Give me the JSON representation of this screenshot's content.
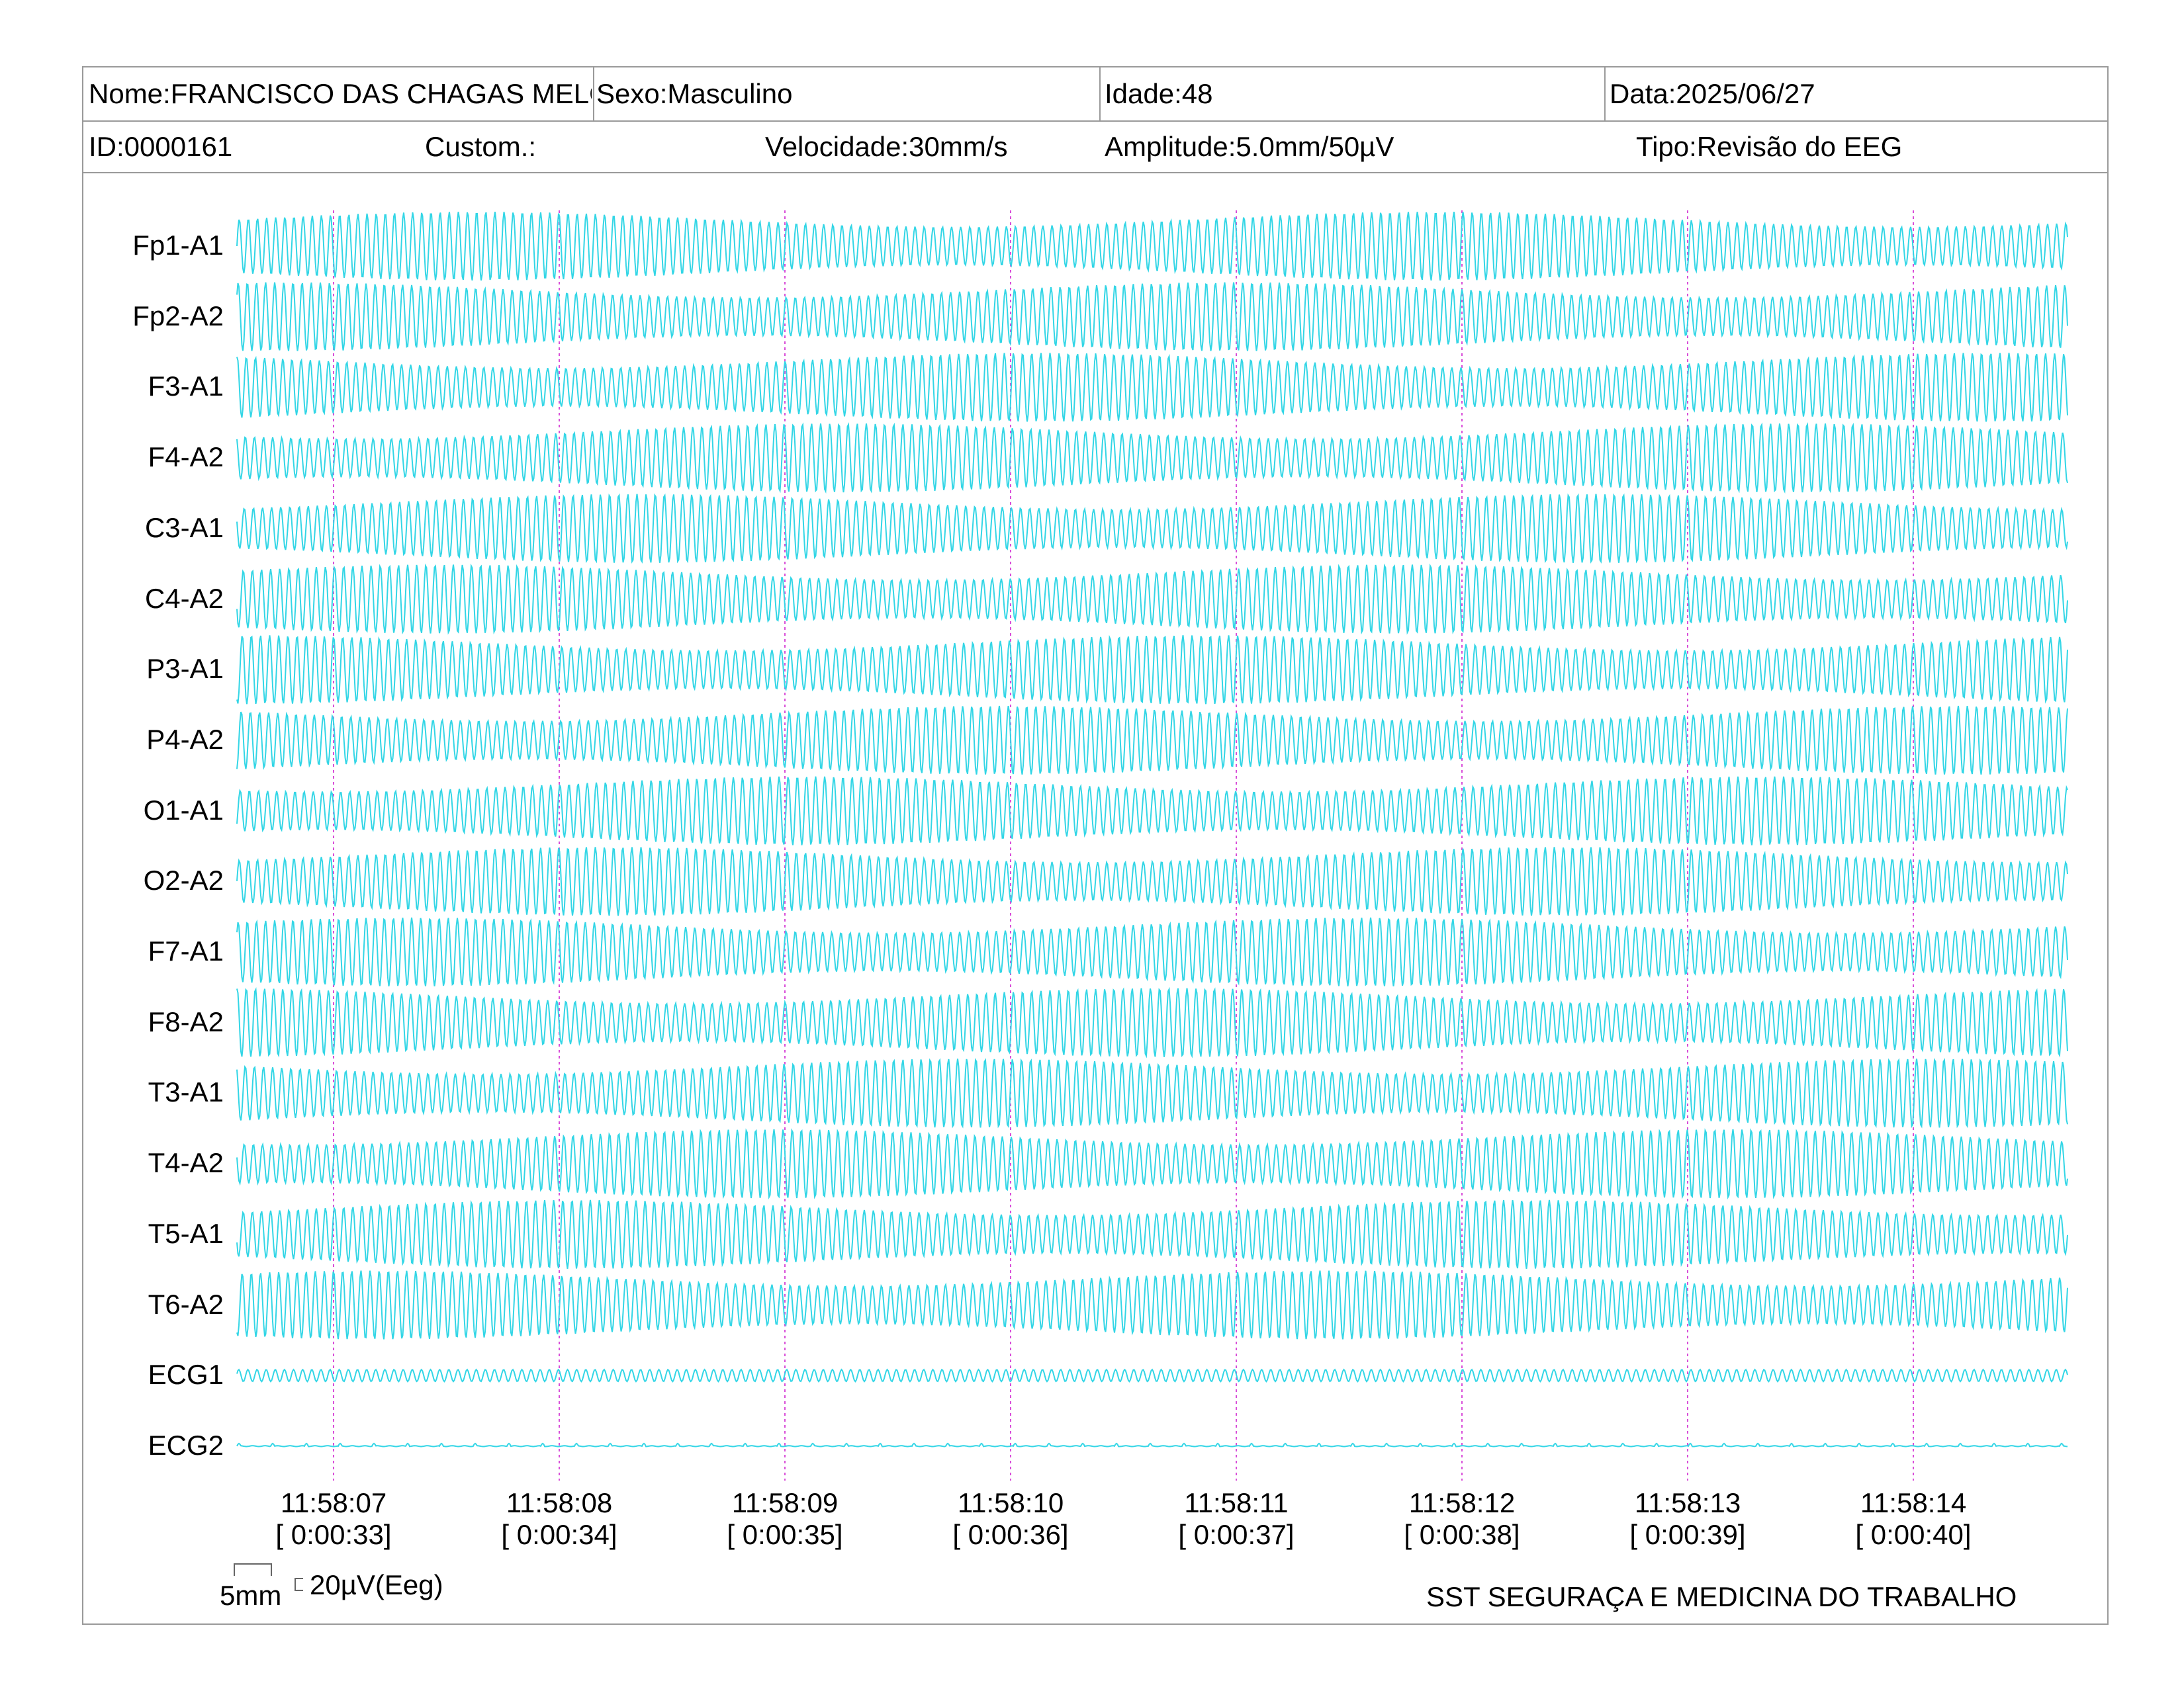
{
  "header": {
    "nome": "Nome:FRANCISCO DAS CHAGAS MELO",
    "sexo": "Sexo:Masculino",
    "idade": "Idade:48",
    "data": "Data:2025/06/27",
    "id": "ID:0000161",
    "custom": "Custom.:",
    "velocidade": "Velocidade:30mm/s",
    "amplitude": "Amplitude:5.0mm/50µV",
    "tipo": "Tipo:Revisão do EEG"
  },
  "channels": [
    "Fp1-A1",
    "Fp2-A2",
    "F3-A1",
    "F4-A2",
    "C3-A1",
    "C4-A2",
    "P3-A1",
    "P4-A2",
    "O1-A1",
    "O2-A2",
    "F7-A1",
    "F8-A2",
    "T3-A1",
    "T4-A2",
    "T5-A1",
    "T6-A2",
    "ECG1",
    "ECG2"
  ],
  "time_markers": [
    {
      "clock": "11:58:07",
      "elapsed": "[ 0:00:33]"
    },
    {
      "clock": "11:58:08",
      "elapsed": "[ 0:00:34]"
    },
    {
      "clock": "11:58:09",
      "elapsed": "[ 0:00:35]"
    },
    {
      "clock": "11:58:10",
      "elapsed": "[ 0:00:36]"
    },
    {
      "clock": "11:58:11",
      "elapsed": "[ 0:00:37]"
    },
    {
      "clock": "11:58:12",
      "elapsed": "[ 0:00:38]"
    },
    {
      "clock": "11:58:13",
      "elapsed": "[ 0:00:39]"
    },
    {
      "clock": "11:58:14",
      "elapsed": "[ 0:00:40]"
    }
  ],
  "scale": {
    "time_label": "5mm",
    "amp_label": "20µV(Eeg)"
  },
  "footer": {
    "organization": "SST SEGURAÇA E MEDICINA DO TRABALHO"
  },
  "colors": {
    "trace": "#33d6e6",
    "marker": "#d94fd9"
  }
}
